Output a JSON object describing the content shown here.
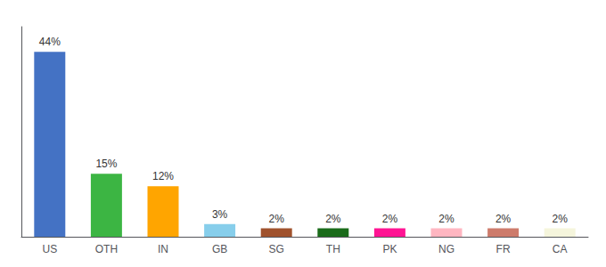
{
  "chart_data": {
    "type": "bar",
    "categories": [
      "US",
      "OTH",
      "IN",
      "GB",
      "SG",
      "TH",
      "PK",
      "NG",
      "FR",
      "CA"
    ],
    "values": [
      44,
      15,
      12,
      3,
      2,
      2,
      2,
      2,
      2,
      2
    ],
    "value_labels": [
      "44%",
      "15%",
      "12%",
      "3%",
      "2%",
      "2%",
      "2%",
      "2%",
      "2%",
      "2%"
    ],
    "colors": [
      "#4472C4",
      "#3CB543",
      "#FFA500",
      "#87CEEB",
      "#A0522D",
      "#1A6B1A",
      "#FF1493",
      "#FFB6C1",
      "#CD7B6B",
      "#F5F5DC"
    ],
    "ylim": [
      0,
      50
    ],
    "yticks": [],
    "grid": false,
    "data_labels": true,
    "tick_labels": "x"
  }
}
